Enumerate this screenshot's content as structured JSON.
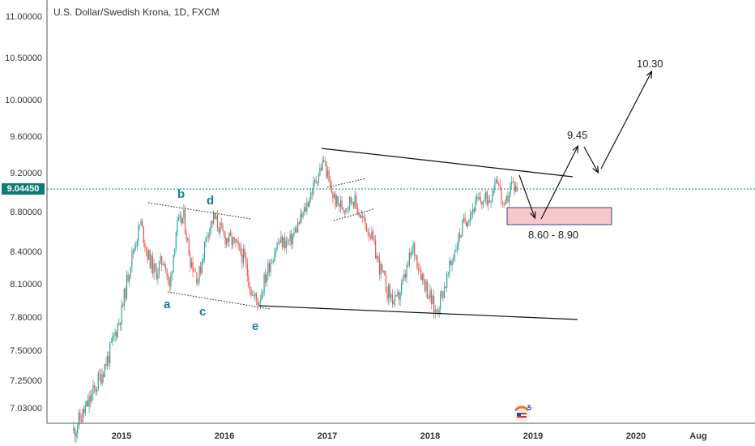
{
  "chart_data": {
    "type": "candlestick",
    "title": "U.S. Dollar/Swedish Krona, 1D, FXCM",
    "y_ticks": [
      "11.00000",
      "10.50000",
      "10.00000",
      "9.60000",
      "9.20000",
      "8.80000",
      "8.40000",
      "8.10000",
      "7.80000",
      "7.50000",
      "7.25000",
      "7.03000"
    ],
    "x_ticks": [
      "2015",
      "2016",
      "2017",
      "2018",
      "2019",
      "2020",
      "Aug"
    ],
    "current_price": "9.04450",
    "series": [
      {
        "path_points": [
          [
            "2014-07-15",
            6.85
          ],
          [
            "2014-09-01",
            7.05
          ],
          [
            "2014-10-01",
            7.2
          ],
          [
            "2014-11-15",
            7.45
          ],
          [
            "2015-01-01",
            7.85
          ],
          [
            "2015-02-01",
            8.3
          ],
          [
            "2015-03-10",
            8.7
          ],
          [
            "2015-04-01",
            8.4
          ],
          [
            "2015-05-01",
            8.2
          ],
          [
            "2015-06-01",
            8.35
          ],
          [
            "2015-06-20",
            8.05
          ],
          [
            "2015-07-15",
            8.65
          ],
          [
            "2015-08-10",
            8.75
          ],
          [
            "2015-09-01",
            8.35
          ],
          [
            "2015-10-01",
            8.15
          ],
          [
            "2015-11-01",
            8.6
          ],
          [
            "2015-11-25",
            8.75
          ],
          [
            "2016-01-01",
            8.55
          ],
          [
            "2016-02-01",
            8.5
          ],
          [
            "2016-03-10",
            8.35
          ],
          [
            "2016-04-10",
            8.0
          ],
          [
            "2016-05-01",
            7.95
          ],
          [
            "2016-06-10",
            8.3
          ],
          [
            "2016-07-10",
            8.5
          ],
          [
            "2016-08-20",
            8.5
          ],
          [
            "2016-10-10",
            8.8
          ],
          [
            "2016-11-10",
            9.05
          ],
          [
            "2016-12-20",
            9.35
          ],
          [
            "2017-01-10",
            9.05
          ],
          [
            "2017-02-01",
            8.9
          ],
          [
            "2017-03-01",
            8.85
          ],
          [
            "2017-04-01",
            8.95
          ],
          [
            "2017-05-01",
            8.75
          ],
          [
            "2017-06-01",
            8.6
          ],
          [
            "2017-07-01",
            8.3
          ],
          [
            "2017-08-01",
            8.05
          ],
          [
            "2017-09-01",
            7.92
          ],
          [
            "2017-10-01",
            8.15
          ],
          [
            "2017-11-01",
            8.45
          ],
          [
            "2017-12-01",
            8.2
          ],
          [
            "2018-01-20",
            7.85
          ],
          [
            "2018-03-01",
            8.15
          ],
          [
            "2018-04-01",
            8.45
          ],
          [
            "2018-05-01",
            8.7
          ],
          [
            "2018-06-15",
            8.9
          ],
          [
            "2018-08-01",
            8.95
          ],
          [
            "2018-08-25",
            9.2
          ],
          [
            "2018-09-20",
            8.8
          ],
          [
            "2018-10-15",
            9.1
          ],
          [
            "2018-11-05",
            9.05
          ]
        ],
        "seed": 11
      }
    ],
    "annotations": {
      "price_labels": [
        "9.45",
        "10.30",
        "8.60 - 8.90"
      ],
      "wave_labels": [
        "a",
        "b",
        "c",
        "d",
        "e"
      ]
    },
    "colors": {
      "up": "#26a69a",
      "down": "#ef5350",
      "price_line": "#0c7c77",
      "zone_fill": "#f6c8cc",
      "zone_border": "#3a3f8f"
    },
    "grid": false
  },
  "icons": {
    "logo": "tradingview-5-logo"
  }
}
